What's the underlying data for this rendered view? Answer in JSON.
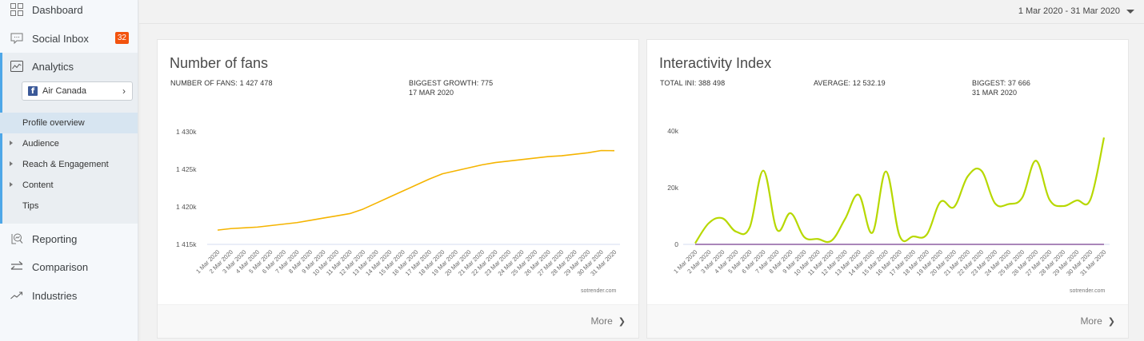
{
  "sidebar": {
    "items": [
      {
        "label": "Dashboard",
        "icon": "grid-icon"
      },
      {
        "label": "Social Inbox",
        "icon": "chat-icon",
        "badge": "32"
      },
      {
        "label": "Analytics",
        "icon": "analytics-icon"
      },
      {
        "label": "Reporting",
        "icon": "report-icon"
      },
      {
        "label": "Comparison",
        "icon": "swap-arrows-icon"
      },
      {
        "label": "Industries",
        "icon": "trend-up-icon"
      }
    ],
    "account": {
      "name": "Air Canada",
      "network": "facebook"
    },
    "sub_items": [
      {
        "label": "Profile overview",
        "active": true,
        "expandable": false
      },
      {
        "label": "Audience",
        "active": false,
        "expandable": true
      },
      {
        "label": "Reach & Engagement",
        "active": false,
        "expandable": true
      },
      {
        "label": "Content",
        "active": false,
        "expandable": true
      },
      {
        "label": "Tips",
        "active": false,
        "expandable": false
      }
    ],
    "badge_color": "#f2530e",
    "accent_color": "#4ea7e8"
  },
  "topbar": {
    "date_range": "1 Mar 2020 - 31 Mar 2020"
  },
  "cards": [
    {
      "title": "Number of fans",
      "stats": [
        {
          "line1": "NUMBER OF FANS: 1 427 478",
          "line2": ""
        },
        {
          "line1": "BIGGEST GROWTH: 775",
          "line2": "17 MAR 2020"
        }
      ],
      "watermark": "sotrender.com",
      "more_label": "More"
    },
    {
      "title": "Interactivity Index",
      "stats": [
        {
          "line1": "TOTAL INI: 388 498",
          "line2": ""
        },
        {
          "line1": "AVERAGE: 12 532.19",
          "line2": ""
        },
        {
          "line1": "BIGGEST: 37 666",
          "line2": "31 MAR 2020"
        }
      ],
      "watermark": "sotrender.com",
      "more_label": "More"
    }
  ],
  "chart_data": [
    {
      "type": "line",
      "title": "Number of fans",
      "xlabel": "",
      "ylabel": "",
      "x": [
        "1 Mar 2020",
        "2 Mar 2020",
        "3 Mar 2020",
        "4 Mar 2020",
        "5 Mar 2020",
        "6 Mar 2020",
        "7 Mar 2020",
        "8 Mar 2020",
        "9 Mar 2020",
        "10 Mar 2020",
        "11 Mar 2020",
        "12 Mar 2020",
        "13 Mar 2020",
        "14 Mar 2020",
        "15 Mar 2020",
        "16 Mar 2020",
        "17 Mar 2020",
        "18 Mar 2020",
        "19 Mar 2020",
        "20 Mar 2020",
        "21 Mar 2020",
        "22 Mar 2020",
        "23 Mar 2020",
        "24 Mar 2020",
        "25 Mar 2020",
        "26 Mar 2020",
        "27 Mar 2020",
        "28 Mar 2020",
        "29 Mar 2020",
        "30 Mar 2020",
        "31 Mar 2020"
      ],
      "series": [
        {
          "name": "Fans",
          "color": "#f5b400",
          "values": [
            1416.9,
            1417.1,
            1417.2,
            1417.3,
            1417.5,
            1417.7,
            1417.9,
            1418.2,
            1418.5,
            1418.8,
            1419.1,
            1419.7,
            1420.5,
            1421.3,
            1422.1,
            1422.9,
            1423.7,
            1424.4,
            1424.8,
            1425.2,
            1425.6,
            1425.9,
            1426.1,
            1426.3,
            1426.5,
            1426.7,
            1426.8,
            1427.0,
            1427.2,
            1427.5,
            1427.48
          ]
        }
      ],
      "yticks": [
        "1 415k",
        "1 420k",
        "1 425k",
        "1 430k"
      ],
      "ytick_values": [
        1415,
        1420,
        1425,
        1430
      ],
      "ylim": [
        1415,
        1430
      ],
      "yunit": "thousands",
      "grid": false
    },
    {
      "type": "line",
      "title": "Interactivity Index",
      "xlabel": "",
      "ylabel": "",
      "x": [
        "1 Mar 2020",
        "2 Mar 2020",
        "3 Mar 2020",
        "4 Mar 2020",
        "5 Mar 2020",
        "6 Mar 2020",
        "7 Mar 2020",
        "8 Mar 2020",
        "9 Mar 2020",
        "10 Mar 2020",
        "11 Mar 2020",
        "12 Mar 2020",
        "13 Mar 2020",
        "14 Mar 2020",
        "15 Mar 2020",
        "16 Mar 2020",
        "17 Mar 2020",
        "18 Mar 2020",
        "19 Mar 2020",
        "20 Mar 2020",
        "21 Mar 2020",
        "22 Mar 2020",
        "23 Mar 2020",
        "24 Mar 2020",
        "25 Mar 2020",
        "26 Mar 2020",
        "27 Mar 2020",
        "28 Mar 2020",
        "29 Mar 2020",
        "30 Mar 2020",
        "31 Mar 2020"
      ],
      "series": [
        {
          "name": "INI",
          "color": "#b7d800",
          "values": [
            400,
            7500,
            9200,
            4500,
            6000,
            26000,
            5200,
            11000,
            2600,
            1900,
            1300,
            9000,
            17500,
            4100,
            25700,
            3000,
            2800,
            3500,
            15000,
            13200,
            24000,
            26000,
            14500,
            14200,
            16500,
            29500,
            15800,
            13500,
            15500,
            15800,
            37666
          ]
        },
        {
          "name": "Baseline",
          "color": "#8e5ea2",
          "values": [
            0,
            0,
            0,
            0,
            0,
            0,
            0,
            0,
            0,
            0,
            0,
            0,
            0,
            0,
            0,
            0,
            0,
            0,
            0,
            0,
            0,
            0,
            0,
            0,
            0,
            0,
            0,
            0,
            0,
            0,
            0
          ]
        }
      ],
      "yticks": [
        "0",
        "20k",
        "40k"
      ],
      "ytick_values": [
        0,
        20000,
        40000
      ],
      "ylim": [
        0,
        40000
      ],
      "grid": false
    }
  ]
}
